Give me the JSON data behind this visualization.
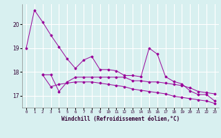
{
  "x": [
    0,
    1,
    2,
    3,
    4,
    5,
    6,
    7,
    8,
    9,
    10,
    11,
    12,
    13,
    14,
    15,
    16,
    17,
    18,
    19,
    20,
    21,
    22,
    23
  ],
  "line1": [
    19.0,
    20.6,
    20.1,
    19.55,
    19.05,
    18.55,
    18.15,
    18.5,
    18.65,
    18.1,
    18.1,
    18.05,
    17.85,
    17.85,
    17.8,
    19.0,
    18.75,
    17.8,
    17.6,
    17.5,
    17.2,
    17.05,
    17.05,
    16.78
  ],
  "line2": [
    null,
    null,
    17.88,
    17.88,
    17.18,
    17.58,
    17.78,
    17.78,
    17.78,
    17.78,
    17.78,
    17.78,
    17.78,
    17.63,
    17.63,
    17.58,
    17.58,
    17.53,
    17.48,
    17.43,
    17.33,
    17.18,
    17.13,
    17.08
  ],
  "line3": [
    null,
    null,
    17.88,
    17.38,
    17.48,
    17.53,
    17.58,
    17.58,
    17.58,
    17.53,
    17.48,
    17.43,
    17.38,
    17.28,
    17.23,
    17.18,
    17.13,
    17.08,
    16.98,
    16.93,
    16.88,
    16.83,
    16.78,
    16.68
  ],
  "color": "#990099",
  "bg_color": "#d8f0f0",
  "grid_color": "#ffffff",
  "xlabel": "Windchill (Refroidissement éolien,°C)",
  "yticks": [
    17,
    18,
    19,
    20
  ],
  "ylim": [
    16.5,
    20.85
  ],
  "xlim": [
    -0.5,
    23.5
  ]
}
